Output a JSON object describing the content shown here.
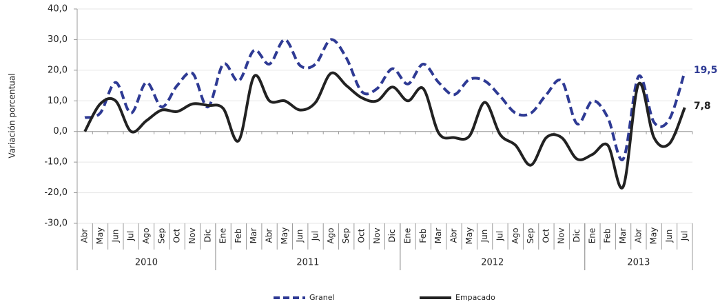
{
  "chart_data": {
    "type": "line",
    "y_label": "Variación porcentual",
    "categories": [
      "Abr",
      "May",
      "Jun",
      "Jul",
      "Ago",
      "Sep",
      "Oct",
      "Nov",
      "Dic",
      "Ene",
      "Feb",
      "Mar",
      "Abr",
      "May",
      "Jun",
      "Jul",
      "Ago",
      "Sep",
      "Oct",
      "Nov",
      "Dic",
      "Ene",
      "Feb",
      "Mar",
      "Abr",
      "May",
      "Jun",
      "Jul",
      "Ago",
      "Sep",
      "Oct",
      "Nov",
      "Dic",
      "Ene",
      "Feb",
      "Mar",
      "Abr",
      "May",
      "Jun",
      "Jul"
    ],
    "groups": [
      {
        "label": "2010",
        "count": 9
      },
      {
        "label": "2011",
        "count": 12
      },
      {
        "label": "2012",
        "count": 12
      },
      {
        "label": "2013",
        "count": 7
      }
    ],
    "series": [
      {
        "name": "Granel",
        "color": "#2e3a94",
        "dashed": true,
        "values": [
          4.5,
          6,
          16,
          6,
          16,
          8,
          15,
          19,
          8,
          22,
          16.5,
          26.5,
          22,
          30,
          21.5,
          22,
          30,
          24,
          13,
          14,
          20.5,
          15.5,
          22,
          16,
          12,
          17,
          16.5,
          11.5,
          6,
          6,
          12,
          16.5,
          2.5,
          10,
          4.5,
          -9,
          18,
          3,
          4,
          19.5
        ],
        "value_labels": [
          null,
          null,
          null,
          null,
          null,
          null,
          null,
          null,
          null,
          null,
          null,
          null,
          null,
          null,
          null,
          null,
          null,
          null,
          null,
          null,
          null,
          null,
          null,
          null,
          null,
          null,
          null,
          null,
          null,
          null,
          null,
          null,
          null,
          null,
          null,
          null,
          null,
          null,
          null,
          "19,5"
        ]
      },
      {
        "name": "Empacado",
        "color": "#222222",
        "dashed": false,
        "values": [
          0,
          9,
          10,
          0,
          3.5,
          7,
          6.5,
          9,
          8.5,
          7.5,
          -3,
          18,
          10,
          10,
          7,
          9.5,
          19,
          15,
          11,
          10,
          14.5,
          10,
          14,
          -0.5,
          -2,
          -1.5,
          9.5,
          -1,
          -4.5,
          -11,
          -2,
          -2,
          -9,
          -7.5,
          -4.5,
          -18,
          15.5,
          -2,
          -4,
          7.8
        ],
        "value_labels": [
          null,
          null,
          null,
          null,
          null,
          null,
          null,
          null,
          null,
          null,
          null,
          null,
          null,
          null,
          null,
          null,
          null,
          null,
          null,
          null,
          null,
          null,
          null,
          null,
          null,
          null,
          null,
          null,
          null,
          null,
          null,
          null,
          null,
          null,
          null,
          null,
          null,
          null,
          null,
          "7,8"
        ]
      }
    ],
    "ylim": [
      -30,
      40
    ],
    "yticks": [
      {
        "value": -30,
        "label": "-30,0"
      },
      {
        "value": -20,
        "label": "-20,0"
      },
      {
        "value": -10,
        "label": "-10,0"
      },
      {
        "value": 0,
        "label": "0,0"
      },
      {
        "value": 10,
        "label": "10,0"
      },
      {
        "value": 20,
        "label": "20,0"
      },
      {
        "value": 30,
        "label": "30,0"
      },
      {
        "value": 40,
        "label": "40,0"
      }
    ],
    "grid": true,
    "smooth": true,
    "legend": "bottom"
  }
}
